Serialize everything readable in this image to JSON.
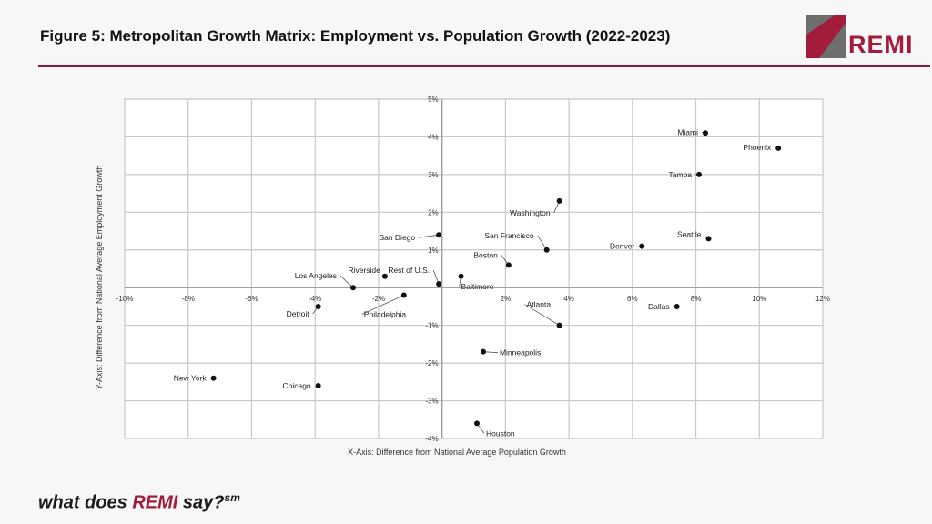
{
  "header": {
    "title": "Figure 5: Metropolitan Growth Matrix: Employment vs. Population Growth (2022-2023)",
    "logo_text": "REMI"
  },
  "footer": {
    "prefix": "what does ",
    "brand": "REMI",
    "suffix": " say?",
    "mark": "sm"
  },
  "colors": {
    "brand": "#a11d3b",
    "logo_gray": "#6e6e6e",
    "rule": "#8e1b35"
  },
  "chart_data": {
    "type": "scatter",
    "title": "",
    "xlabel": "X-Axis: Difference from National Average Population Growth",
    "ylabel": "Y-Axis: Difference from National Average Employment Growth",
    "xlim": [
      -10,
      12
    ],
    "ylim": [
      -4,
      5
    ],
    "x_ticks": [
      -10,
      -8,
      -6,
      -4,
      -2,
      2,
      4,
      6,
      8,
      10,
      12
    ],
    "y_ticks": [
      -4,
      -3,
      -2,
      -1,
      1,
      2,
      3,
      4,
      5
    ],
    "x_tick_labels": [
      "-10%",
      "-8%",
      "-6%",
      "-4%",
      "-2%",
      "2%",
      "4%",
      "6%",
      "8%",
      "10%",
      "12%"
    ],
    "y_tick_labels": [
      "-4%",
      "-3%",
      "-2%",
      "-1%",
      "1%",
      "2%",
      "3%",
      "4%",
      "5%"
    ],
    "grid": true,
    "points": [
      {
        "label": "Miami",
        "x": 8.3,
        "y": 4.1
      },
      {
        "label": "Phoenix",
        "x": 10.6,
        "y": 3.7
      },
      {
        "label": "Tampa",
        "x": 8.1,
        "y": 3.0
      },
      {
        "label": "Washington",
        "x": 3.7,
        "y": 2.3
      },
      {
        "label": "San Francisco",
        "x": 3.3,
        "y": 1.0
      },
      {
        "label": "Denver",
        "x": 6.3,
        "y": 1.1
      },
      {
        "label": "Seattle",
        "x": 8.4,
        "y": 1.3
      },
      {
        "label": "Boston",
        "x": 2.1,
        "y": 0.6
      },
      {
        "label": "San Diego",
        "x": -0.1,
        "y": 1.4
      },
      {
        "label": "Riverside",
        "x": -1.8,
        "y": 0.3
      },
      {
        "label": "Rest of U.S.",
        "x": -0.1,
        "y": 0.1
      },
      {
        "label": "Baltimore",
        "x": 0.6,
        "y": 0.3
      },
      {
        "label": "Los Angeles",
        "x": -2.8,
        "y": 0.0
      },
      {
        "label": "Philadelphia",
        "x": -1.2,
        "y": -0.2
      },
      {
        "label": "Detroit",
        "x": -3.9,
        "y": -0.5
      },
      {
        "label": "Dallas",
        "x": 7.4,
        "y": -0.5
      },
      {
        "label": "Atlanta",
        "x": 3.7,
        "y": -1.0
      },
      {
        "label": "Minneapolis",
        "x": 1.3,
        "y": -1.7
      },
      {
        "label": "New York",
        "x": -7.2,
        "y": -2.4
      },
      {
        "label": "Chicago",
        "x": -3.9,
        "y": -2.6
      },
      {
        "label": "Houston",
        "x": 1.1,
        "y": -3.6
      }
    ]
  }
}
